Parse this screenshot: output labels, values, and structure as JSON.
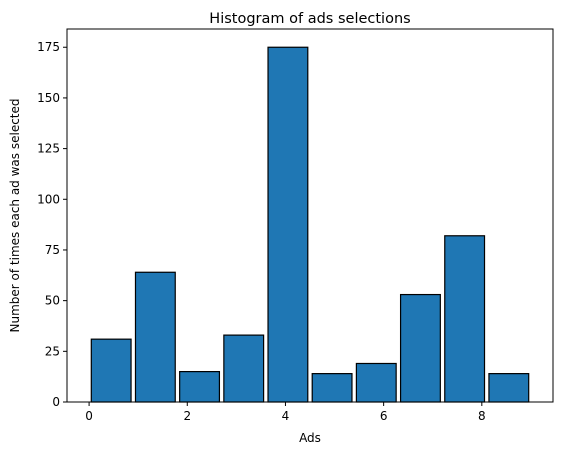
{
  "chart_data": {
    "type": "bar",
    "title": "Histogram of ads selections",
    "xlabel": "Ads",
    "ylabel": "Number of times each ad was selected",
    "x_bins": [
      {
        "start": 0.0,
        "end": 0.9
      },
      {
        "start": 0.9,
        "end": 1.8
      },
      {
        "start": 1.8,
        "end": 2.7
      },
      {
        "start": 2.7,
        "end": 3.6
      },
      {
        "start": 3.6,
        "end": 4.5
      },
      {
        "start": 4.5,
        "end": 5.4
      },
      {
        "start": 5.4,
        "end": 6.3
      },
      {
        "start": 6.3,
        "end": 7.2
      },
      {
        "start": 7.2,
        "end": 8.1
      },
      {
        "start": 8.1,
        "end": 9.0
      }
    ],
    "values": [
      31,
      64,
      15,
      33,
      175,
      14,
      19,
      53,
      82,
      14
    ],
    "xlim": [
      -0.45,
      9.45
    ],
    "ylim": [
      0,
      184
    ],
    "xticks": [
      0,
      2,
      4,
      6,
      8
    ],
    "yticks": [
      0,
      25,
      50,
      75,
      100,
      125,
      150,
      175
    ],
    "bar_color": "#1f77b4",
    "edge_color": "#000000",
    "grid": false,
    "legend": "none"
  }
}
